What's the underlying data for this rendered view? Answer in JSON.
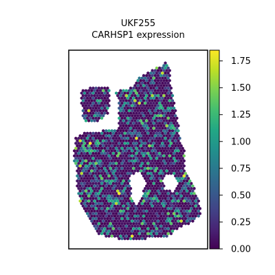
{
  "chart_data": {
    "type": "scatter",
    "title_line1": "UKF255",
    "title_line2": "CARHSP1 expression",
    "xlabel": "",
    "ylabel": "",
    "colorbar": {
      "colormap": "viridis",
      "range": [
        0,
        1.85
      ],
      "ticks": [
        0.0,
        0.25,
        0.5,
        0.75,
        1.0,
        1.25,
        1.5,
        1.75
      ],
      "tick_labels": [
        "0.00",
        "0.25",
        "0.50",
        "0.75",
        "1.00",
        "1.25",
        "1.50",
        "1.75"
      ]
    },
    "spots": {
      "marker": "hexagon",
      "value_distribution": "mostly 0 (dark purple), scattered mid values 0.5-1.25, a few high values up to 1.85",
      "tissue_shape": "irregular tissue section with an upper-left lobe, a large main body, a notch on the left, and a hole in the right-center"
    },
    "grid": false,
    "axes_visible": false
  },
  "colors": {
    "background": "#ffffff",
    "frame": "#000000",
    "low": "#440154",
    "high": "#fde725"
  }
}
